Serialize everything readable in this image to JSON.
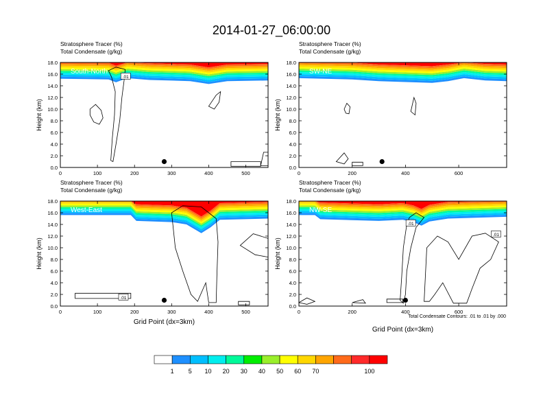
{
  "page": {
    "title": "2014-01-27_06:00:00",
    "footnote": "Total Condensate Contours: .01 to .01 by .000"
  },
  "colorbar": {
    "colors": [
      "#ffffff",
      "#1e90ff",
      "#00bfff",
      "#00eeee",
      "#00fa9a",
      "#00ee00",
      "#9aef2b",
      "#ffff00",
      "#ffd700",
      "#ffa500",
      "#ff6a1a",
      "#ff2a2a",
      "#ff0000"
    ],
    "labels": [
      "1",
      "5",
      "10",
      "20",
      "30",
      "40",
      "50",
      "60",
      "70",
      "100"
    ]
  },
  "chart_data": [
    {
      "type": "filled-contour cross-section",
      "title_line1": "Stratosphere Tracer   (%)",
      "title_line2": "Total Condensate   (g/kg)",
      "panel_label": "South-North",
      "ylabel": "Height (km)",
      "xlabel": "",
      "xlim": [
        0,
        560
      ],
      "ylim": [
        0,
        18
      ],
      "xticks": [
        0,
        100,
        200,
        300,
        400,
        500
      ],
      "yticks": [
        "0.0",
        "2.0",
        "4.0",
        "6.0",
        "8.0",
        "10.0",
        "12.0",
        "14.0",
        "16.0",
        "18.0"
      ],
      "tracer_base_km": [
        [
          0,
          15.2
        ],
        [
          130,
          15.1
        ],
        [
          150,
          14.6
        ],
        [
          180,
          15.3
        ],
        [
          240,
          15.0
        ],
        [
          350,
          14.8
        ],
        [
          400,
          14.3
        ],
        [
          450,
          14.8
        ],
        [
          560,
          14.9
        ]
      ],
      "cloud_contours": [
        [
          [
            130,
            16.6
          ],
          [
            150,
            17.2
          ],
          [
            175,
            16.8
          ],
          [
            172,
            15.0
          ],
          [
            166,
            12.0
          ],
          [
            160,
            8.0
          ],
          [
            150,
            4.0
          ],
          [
            142,
            1.0
          ],
          [
            136,
            1.2
          ],
          [
            140,
            5.0
          ],
          [
            146,
            9.0
          ],
          [
            148,
            13.0
          ],
          [
            138,
            15.5
          ]
        ],
        [
          [
            80,
            10.0
          ],
          [
            95,
            10.8
          ],
          [
            110,
            9.8
          ],
          [
            115,
            8.5
          ],
          [
            105,
            7.4
          ],
          [
            90,
            7.8
          ],
          [
            80,
            9.0
          ]
        ],
        [
          [
            400,
            10.5
          ],
          [
            420,
            12.4
          ],
          [
            432,
            13.0
          ],
          [
            428,
            11.2
          ],
          [
            415,
            10.0
          ]
        ],
        [
          [
            460,
            0.2
          ],
          [
            540,
            0.2
          ],
          [
            540,
            1.0
          ],
          [
            460,
            1.0
          ]
        ],
        [
          [
            540,
            0.3
          ],
          [
            560,
            0.3
          ],
          [
            560,
            2.6
          ],
          [
            548,
            2.6
          ]
        ]
      ],
      "contour_labels": [
        {
          "x": 176,
          "y": 15.6,
          "text": ".01"
        }
      ],
      "marker": {
        "x": 280,
        "y": 1.0
      }
    },
    {
      "type": "filled-contour cross-section",
      "title_line1": "Stratosphere Tracer   (%)",
      "title_line2": "Total Condensate   (g/kg)",
      "panel_label": "SW-NE",
      "ylabel": "Height (km)",
      "xlabel": "",
      "xlim": [
        0,
        780
      ],
      "ylim": [
        0,
        18
      ],
      "xticks": [
        0,
        200,
        400,
        600
      ],
      "yticks": [
        "0.0",
        "2.0",
        "4.0",
        "6.0",
        "8.0",
        "10.0",
        "12.0",
        "14.0",
        "16.0",
        "18.0"
      ],
      "tracer_base_km": [
        [
          0,
          15.3
        ],
        [
          200,
          15.1
        ],
        [
          300,
          14.8
        ],
        [
          500,
          14.5
        ],
        [
          560,
          14.8
        ],
        [
          620,
          15.3
        ],
        [
          700,
          14.9
        ],
        [
          780,
          14.8
        ]
      ],
      "cloud_contours": [
        [
          [
            170,
            10.0
          ],
          [
            180,
            11.0
          ],
          [
            192,
            10.4
          ],
          [
            188,
            9.2
          ],
          [
            176,
            9.3
          ]
        ],
        [
          [
            420,
            9.6
          ],
          [
            432,
            12.0
          ],
          [
            440,
            11.0
          ],
          [
            436,
            9.0
          ]
        ],
        [
          [
            140,
            1.0
          ],
          [
            170,
            2.5
          ],
          [
            185,
            1.5
          ],
          [
            170,
            0.6
          ]
        ],
        [
          [
            200,
            0.3
          ],
          [
            240,
            0.3
          ],
          [
            240,
            0.9
          ],
          [
            200,
            0.9
          ]
        ]
      ],
      "contour_labels": [],
      "marker": {
        "x": 312,
        "y": 1.0
      }
    },
    {
      "type": "filled-contour cross-section",
      "title_line1": "Stratosphere Tracer   (%)",
      "title_line2": "Total Condensate   (g/kg)",
      "panel_label": "West-East",
      "ylabel": "Height (km)",
      "xlabel": "Grid Point (dx=3km)",
      "xlim": [
        0,
        560
      ],
      "ylim": [
        0,
        18
      ],
      "xticks": [
        0,
        100,
        200,
        300,
        400,
        500
      ],
      "yticks": [
        "0.0",
        "2.0",
        "4.0",
        "6.0",
        "8.0",
        "10.0",
        "12.0",
        "14.0",
        "16.0",
        "18.0"
      ],
      "tracer_base_km": [
        [
          0,
          15.6
        ],
        [
          190,
          15.6
        ],
        [
          205,
          14.6
        ],
        [
          300,
          14.4
        ],
        [
          340,
          14.0
        ],
        [
          380,
          12.5
        ],
        [
          405,
          13.5
        ],
        [
          430,
          14.8
        ],
        [
          560,
          15.0
        ]
      ],
      "cloud_contours": [
        [
          [
            300,
            16.0
          ],
          [
            330,
            17.2
          ],
          [
            380,
            17.0
          ],
          [
            420,
            15.0
          ],
          [
            425,
            11.0
          ],
          [
            422,
            5.0
          ],
          [
            420,
            0.6
          ],
          [
            400,
            0.6
          ],
          [
            392,
            4.0
          ],
          [
            370,
            0.8
          ],
          [
            352,
            2.0
          ],
          [
            330,
            6.0
          ],
          [
            310,
            10.0
          ],
          [
            305,
            13.0
          ]
        ],
        [
          [
            40,
            1.3
          ],
          [
            190,
            1.3
          ],
          [
            190,
            2.2
          ],
          [
            40,
            2.2
          ]
        ],
        [
          [
            485,
            10.4
          ],
          [
            520,
            12.4
          ],
          [
            560,
            11.6
          ],
          [
            560,
            8.4
          ],
          [
            525,
            8.8
          ]
        ],
        [
          [
            480,
            0.2
          ],
          [
            510,
            0.2
          ],
          [
            510,
            0.8
          ],
          [
            480,
            0.8
          ]
        ]
      ],
      "contour_labels": [
        {
          "x": 170,
          "y": 1.5,
          "text": ".01"
        }
      ],
      "marker": {
        "x": 280,
        "y": 1.0
      }
    },
    {
      "type": "filled-contour cross-section",
      "title_line1": "Stratosphere Tracer   (%)",
      "title_line2": "Total Condensate   (g/kg)",
      "panel_label": "NW-SE",
      "ylabel": "Height (km)",
      "xlabel": "Grid Point (dx=3km)",
      "xlim": [
        0,
        780
      ],
      "ylim": [
        0,
        18
      ],
      "xticks": [
        0,
        200,
        400,
        600
      ],
      "yticks": [
        "0.0",
        "2.0",
        "4.0",
        "6.0",
        "8.0",
        "10.0",
        "12.0",
        "14.0",
        "16.0",
        "18.0"
      ],
      "tracer_base_km": [
        [
          0,
          15.6
        ],
        [
          60,
          15.6
        ],
        [
          80,
          14.9
        ],
        [
          300,
          14.6
        ],
        [
          390,
          14.8
        ],
        [
          430,
          14.4
        ],
        [
          460,
          13.8
        ],
        [
          490,
          14.5
        ],
        [
          560,
          15.0
        ],
        [
          780,
          15.3
        ]
      ],
      "cloud_contours": [
        [
          [
            415,
            15.2
          ],
          [
            440,
            16.0
          ],
          [
            470,
            15.2
          ],
          [
            440,
            13.5
          ],
          [
            420,
            10.0
          ],
          [
            405,
            6.0
          ],
          [
            400,
            2.0
          ],
          [
            392,
            0.5
          ],
          [
            380,
            1.0
          ],
          [
            386,
            5.0
          ],
          [
            392,
            10.0
          ],
          [
            405,
            14.0
          ]
        ],
        [
          [
            470,
            0.8
          ],
          [
            480,
            10.0
          ],
          [
            520,
            12.0
          ],
          [
            560,
            11.0
          ],
          [
            600,
            8.0
          ],
          [
            650,
            12.0
          ],
          [
            700,
            12.5
          ],
          [
            750,
            11.0
          ],
          [
            720,
            8.0
          ],
          [
            680,
            6.5
          ],
          [
            650,
            3.0
          ],
          [
            630,
            0.5
          ],
          [
            580,
            0.5
          ],
          [
            540,
            4.0
          ],
          [
            510,
            2.0
          ],
          [
            490,
            0.8
          ]
        ],
        [
          [
            0,
            0.6
          ],
          [
            30,
            1.4
          ],
          [
            60,
            0.8
          ],
          [
            30,
            0.3
          ]
        ],
        [
          [
            200,
            0.6
          ],
          [
            240,
            1.1
          ],
          [
            250,
            0.5
          ]
        ],
        [
          [
            330,
            0.6
          ],
          [
            390,
            0.6
          ],
          [
            390,
            1.2
          ],
          [
            330,
            1.2
          ]
        ]
      ],
      "contour_labels": [
        {
          "x": 420,
          "y": 14.2,
          "text": ".01"
        },
        {
          "x": 740,
          "y": 12.3,
          "text": ".01"
        }
      ],
      "marker": {
        "x": 400,
        "y": 1.0
      }
    }
  ]
}
